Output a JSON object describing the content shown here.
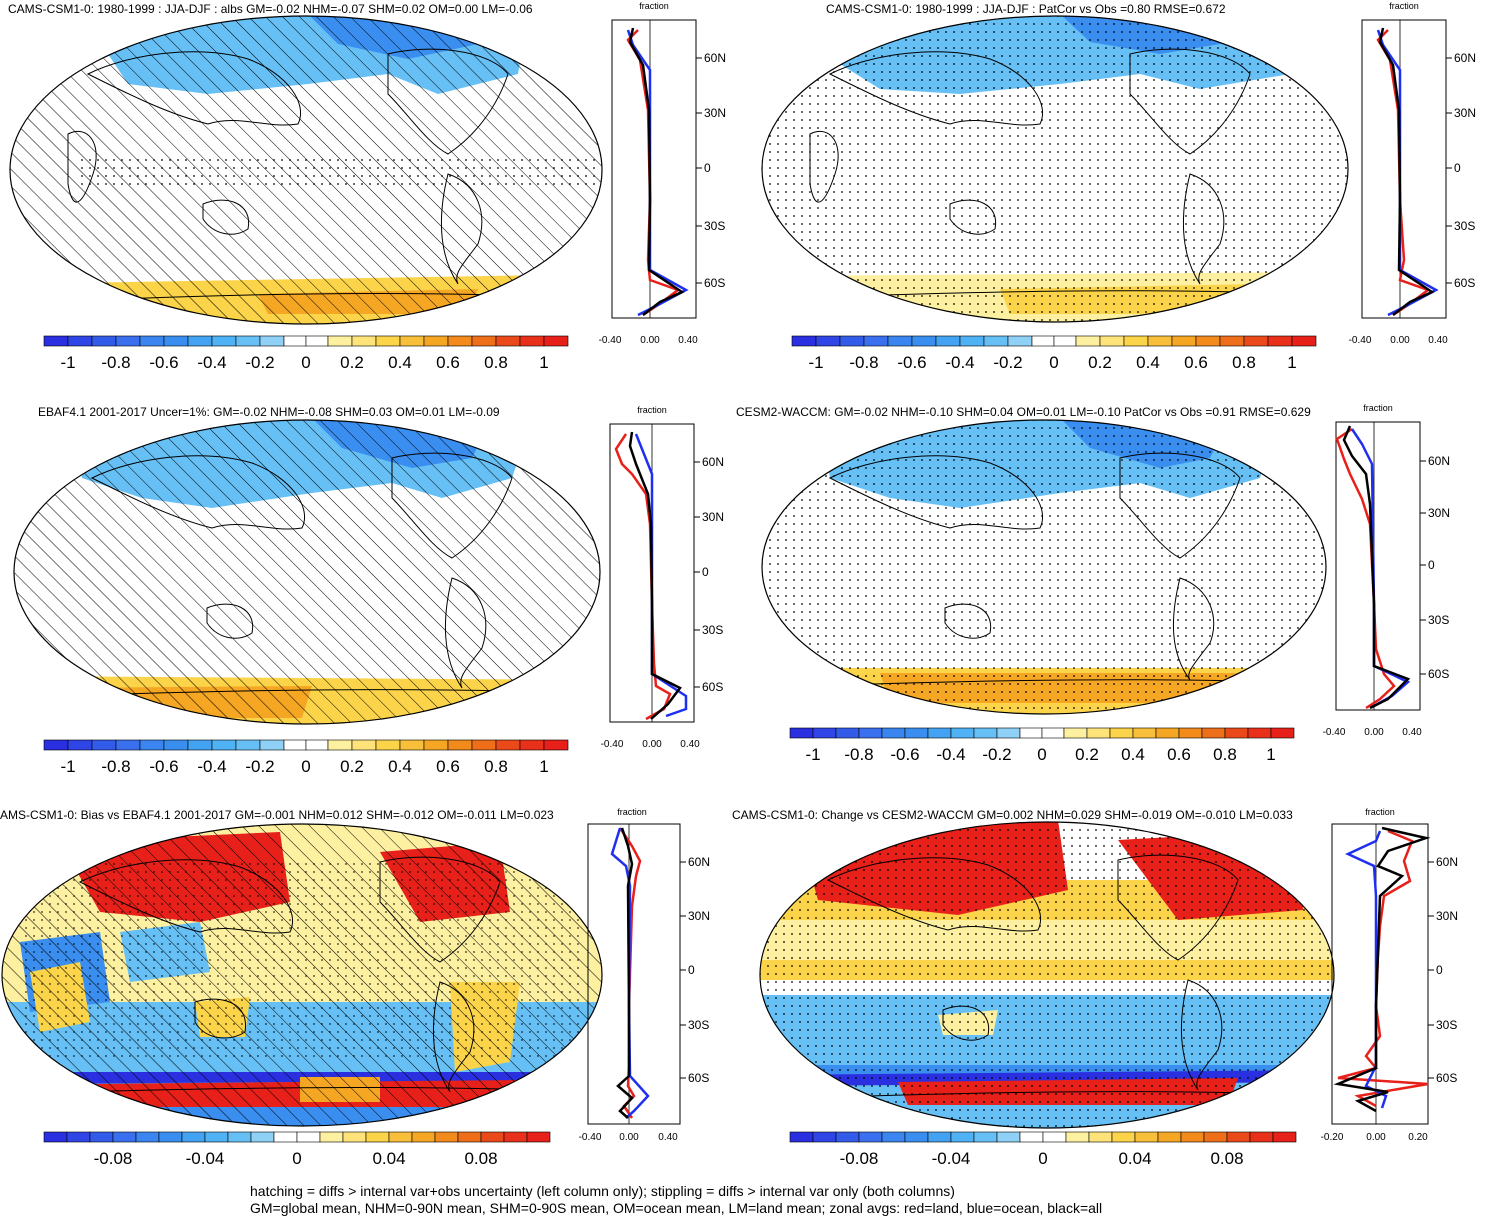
{
  "footer": {
    "line1": "hatching = diffs > internal var+obs uncertainty (left column only); stippling = diffs > internal var only (both columns)",
    "line2": "GM=global mean, NHM=0-90N mean, SHM=0-90S mean, OM=ocean mean, LM=land mean; zonal avgs: red=land, blue=ocean, black=all"
  },
  "colors": {
    "blue_deep": "#2a2fe0",
    "blue_mid": "#3a8ef0",
    "blue_light": "#66c0f5",
    "white": "#ffffff",
    "yellow_light": "#fdf0a0",
    "yellow": "#fbd44a",
    "orange": "#f5a623",
    "red": "#e8201a",
    "land_red": "#e8201a",
    "ocean_blue": "#1f2ff0",
    "all_black": "#000000"
  },
  "zonal_common": {
    "axis_title": "fraction",
    "lat_ticks": [
      "60N",
      "30N",
      "0",
      "30S",
      "60S"
    ]
  },
  "panels": [
    {
      "id": "p1",
      "title": "CAMS-CSM1-0: 1980-1999 : JJA-DJF : albs GM=-0.02 NHM=-0.07 SHM=0.02 OM=0.00 LM=-0.06",
      "colorbar_labels": [
        "-1",
        "-0.8",
        "-0.6",
        "-0.4",
        "-0.2",
        "0",
        "0.2",
        "0.4",
        "0.6",
        "0.8",
        "1"
      ],
      "zonal_ticks": [
        "-0.40",
        "0.00",
        "0.40"
      ],
      "pattern": "hatch"
    },
    {
      "id": "p2",
      "title": "CAMS-CSM1-0: 1980-1999 : JJA-DJF : PatCor vs Obs =0.80 RMSE=0.672",
      "colorbar_labels": [
        "-1",
        "-0.8",
        "-0.6",
        "-0.4",
        "-0.2",
        "0",
        "0.2",
        "0.4",
        "0.6",
        "0.8",
        "1"
      ],
      "zonal_ticks": [
        "-0.40",
        "0.00",
        "0.40"
      ],
      "pattern": "stipple"
    },
    {
      "id": "p3",
      "title": "EBAF4.1 2001-2017 Uncer=1%: GM=-0.02 NHM=-0.08 SHM=0.03 OM=0.01 LM=-0.09",
      "colorbar_labels": [
        "-1",
        "-0.8",
        "-0.6",
        "-0.4",
        "-0.2",
        "0",
        "0.2",
        "0.4",
        "0.6",
        "0.8",
        "1"
      ],
      "zonal_ticks": [
        "-0.40",
        "0.00",
        "0.40"
      ],
      "pattern": "hatch"
    },
    {
      "id": "p4",
      "title": "CESM2-WACCM: GM=-0.02 NHM=-0.10 SHM=0.04 OM=0.01 LM=-0.10 PatCor vs Obs =0.91 RMSE=0.629",
      "colorbar_labels": [
        "-1",
        "-0.8",
        "-0.6",
        "-0.4",
        "-0.2",
        "0",
        "0.2",
        "0.4",
        "0.6",
        "0.8",
        "1"
      ],
      "zonal_ticks": [
        "-0.40",
        "0.00",
        "0.40"
      ],
      "pattern": "stipple"
    },
    {
      "id": "p5",
      "title": "AMS-CSM1-0: Bias vs EBAF4.1 2001-2017 GM=-0.001 NHM=0.012 SHM=-0.012 OM=-0.011 LM=0.023",
      "colorbar_labels": [
        "-0.08",
        "-0.04",
        "0",
        "0.04",
        "0.08"
      ],
      "zonal_ticks": [
        "-0.40",
        "0.00",
        "0.40"
      ],
      "pattern": "hatch"
    },
    {
      "id": "p6",
      "title": "CAMS-CSM1-0: Change vs CESM2-WACCM GM=0.002 NHM=0.029 SHM=-0.019 OM=-0.010 LM=0.033",
      "colorbar_labels": [
        "-0.08",
        "-0.04",
        "0",
        "0.04",
        "0.08"
      ],
      "zonal_ticks": [
        "-0.20",
        "0.00",
        "0.20"
      ],
      "pattern": "stipple"
    }
  ]
}
